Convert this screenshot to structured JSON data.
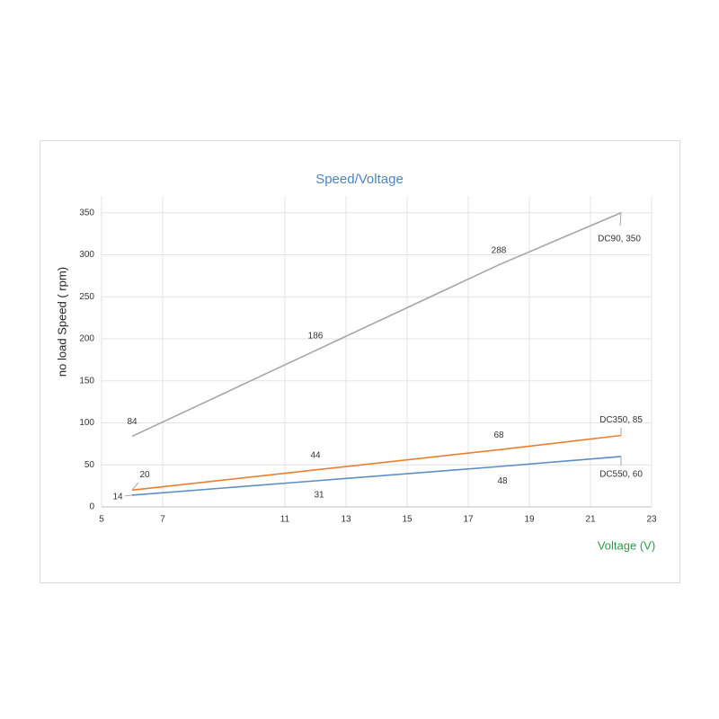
{
  "chart_data": {
    "type": "line",
    "title": "Speed/Voltage",
    "x_label": "Voltage (V)",
    "y_label": "no load Speed ( rpm)",
    "x": [
      6,
      12,
      18,
      22
    ],
    "series": [
      {
        "color": "#a5a5a5",
        "values": [
          84,
          186,
          288,
          350
        ],
        "value_labels": [
          "84",
          "186",
          "288",
          "DC90, 350"
        ]
      },
      {
        "color": "#ed7d31",
        "values": [
          20,
          44,
          68,
          85
        ],
        "value_labels": [
          "20",
          "44",
          "68",
          "DC350, 85"
        ]
      },
      {
        "color": "#5b8fc4",
        "values": [
          14,
          31,
          48,
          60
        ],
        "value_labels": [
          "14",
          "31",
          "48",
          "DC550, 60"
        ]
      }
    ],
    "xlim": [
      5,
      23
    ],
    "xticks": [
      5,
      7,
      11,
      13,
      15,
      17,
      19,
      21,
      23
    ],
    "ylim": [
      0,
      370
    ],
    "yticks": [
      0,
      50,
      100,
      150,
      200,
      250,
      300,
      350
    ],
    "grid": true
  }
}
